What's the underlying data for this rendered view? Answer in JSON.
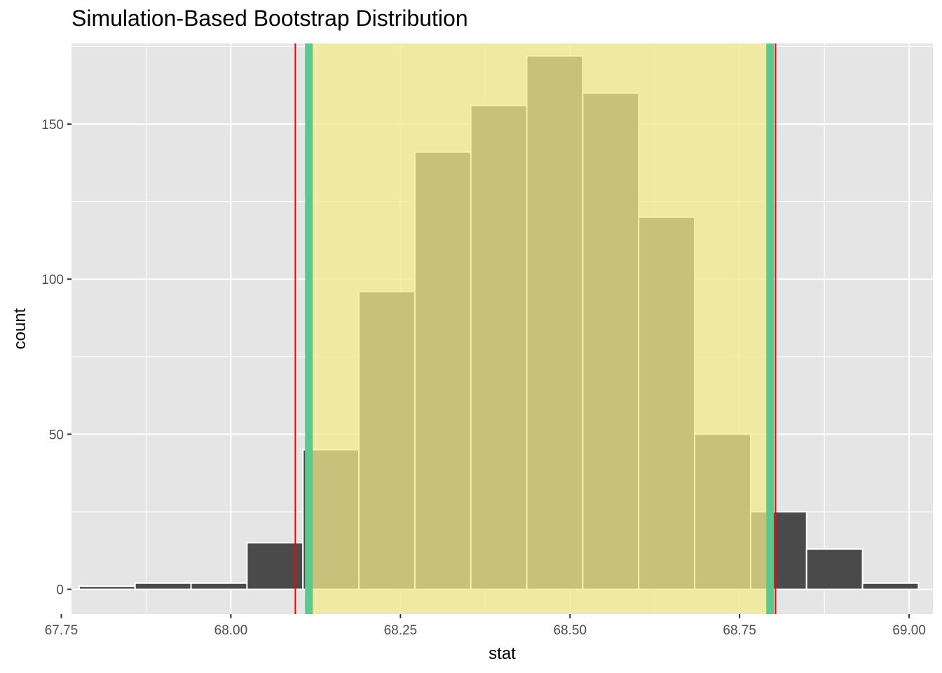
{
  "chart_data": {
    "type": "bar",
    "title": "Simulation-Based Bootstrap Distribution",
    "xlabel": "stat",
    "ylabel": "count",
    "xlim": [
      67.765,
      69.035
    ],
    "ylim": [
      -8,
      176
    ],
    "x_ticks": [
      67.75,
      68.0,
      68.25,
      68.5,
      68.75,
      69.0
    ],
    "x_tick_labels": [
      "67.75",
      "68.00",
      "68.25",
      "68.50",
      "68.75",
      "69.00"
    ],
    "y_ticks": [
      0,
      50,
      100,
      150
    ],
    "y_tick_labels": [
      "0",
      "50",
      "100",
      "150"
    ],
    "bin_width": 0.0825,
    "bins": [
      {
        "center": 67.8175,
        "count": 1
      },
      {
        "center": 67.9,
        "count": 2
      },
      {
        "center": 67.9825,
        "count": 2
      },
      {
        "center": 68.065,
        "count": 15
      },
      {
        "center": 68.1475,
        "count": 45
      },
      {
        "center": 68.23,
        "count": 96
      },
      {
        "center": 68.3125,
        "count": 141
      },
      {
        "center": 68.395,
        "count": 156
      },
      {
        "center": 68.4775,
        "count": 172
      },
      {
        "center": 68.56,
        "count": 160
      },
      {
        "center": 68.6425,
        "count": 120
      },
      {
        "center": 68.725,
        "count": 50
      },
      {
        "center": 68.8075,
        "count": 25
      },
      {
        "center": 68.89,
        "count": 13
      },
      {
        "center": 68.9725,
        "count": 2
      }
    ],
    "shaded_interval": [
      68.115,
      68.795
    ],
    "green_lines": [
      68.115,
      68.795
    ],
    "red_lines": [
      68.095,
      68.803
    ],
    "colors": {
      "panel": "#e5e5e5",
      "grid": "#ffffff",
      "bar": "#4a4a4a",
      "bar_outline": "#ffffff",
      "shade": "#f0ea8c",
      "shade_opacity": 0.75,
      "green": "#5cc78f",
      "red": "#ff0000"
    },
    "grid": true,
    "legend": "none"
  }
}
